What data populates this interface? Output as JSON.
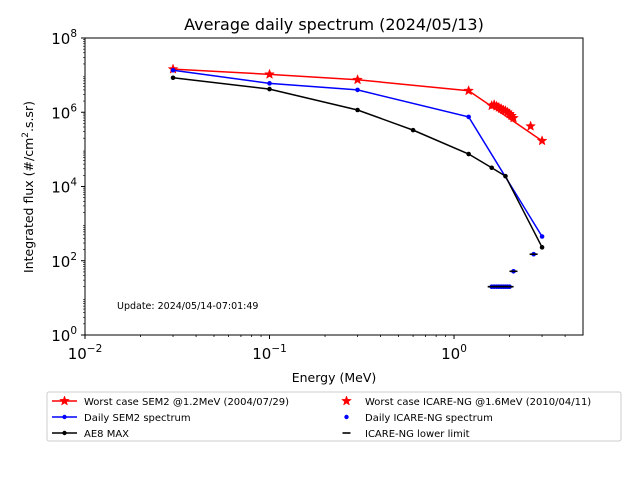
{
  "chart_data": {
    "type": "line",
    "title": "Average daily spectrum (2024/05/13)",
    "xlabel": "Energy (MeV)",
    "ylabel_main": "Integrated flux (#/cm",
    "ylabel_sup": "2",
    "ylabel_tail": ".s.sr)",
    "x_scale": "log",
    "y_scale": "log",
    "xlim": [
      0.01,
      5
    ],
    "ylim": [
      1,
      100000000
    ],
    "grid": false,
    "legend_position": "below plot",
    "annotation": "Update: 2024/05/14-07:01:49",
    "x_ticks": [
      {
        "value": 0.01,
        "base": "10",
        "exp": "−2"
      },
      {
        "value": 0.1,
        "base": "10",
        "exp": "−1"
      },
      {
        "value": 1,
        "base": "10",
        "exp": "0"
      }
    ],
    "y_ticks": [
      {
        "value": 1,
        "base": "10",
        "exp": "0"
      },
      {
        "value": 100,
        "base": "10",
        "exp": "2"
      },
      {
        "value": 10000,
        "base": "10",
        "exp": "4"
      },
      {
        "value": 1000000,
        "base": "10",
        "exp": "6"
      },
      {
        "value": 100000000,
        "base": "10",
        "exp": "8"
      }
    ],
    "series": [
      {
        "name": "Worst case SEM2 @1.2MeV (2004/07/29)",
        "color": "#ff0000",
        "marker": "star",
        "line": true,
        "x": [
          0.03,
          0.1,
          0.3,
          1.2,
          3.0
        ],
        "y": [
          14500000,
          10500000,
          7500000,
          3800000,
          170000
        ]
      },
      {
        "name": "Daily SEM2 spectrum",
        "color": "#0000ff",
        "marker": "dot",
        "line": true,
        "x": [
          0.03,
          0.1,
          0.3,
          1.2,
          3.0
        ],
        "y": [
          13500000,
          6000000,
          4000000,
          750000,
          450
        ]
      },
      {
        "name": "AE8 MAX",
        "color": "#000000",
        "marker": "dot",
        "line": true,
        "x": [
          0.03,
          0.1,
          0.3,
          0.6,
          1.2,
          1.6,
          1.9,
          3.0
        ],
        "y": [
          8500000,
          4200000,
          1150000,
          330000,
          75000,
          32000,
          19000,
          230
        ]
      },
      {
        "name": "Worst case ICARE-NG @1.6MeV (2010/04/11)",
        "color": "#ff0000",
        "marker": "star",
        "line": false,
        "x": [
          1.6,
          1.65,
          1.7,
          1.75,
          1.8,
          1.85,
          1.9,
          1.95,
          2.0,
          2.05,
          2.1,
          2.6
        ],
        "y": [
          1500000,
          1600000,
          1450000,
          1350000,
          1250000,
          1150000,
          1100000,
          1000000,
          900000,
          800000,
          700000,
          420000
        ]
      },
      {
        "name": "Daily ICARE-NG spectrum",
        "color": "#0000ff",
        "marker": "dot",
        "line": false,
        "x": [
          1.6,
          1.65,
          1.7,
          1.75,
          1.8,
          1.85,
          1.9,
          1.95,
          2.0,
          2.1,
          2.7
        ],
        "y": [
          20,
          20,
          20,
          20,
          20,
          20,
          20,
          20,
          20,
          52,
          150
        ]
      },
      {
        "name": "ICARE-NG lower limit",
        "color": "#000000",
        "marker": "hline",
        "line": false,
        "x": [
          1.6,
          1.65,
          1.7,
          1.75,
          1.8,
          1.85,
          1.9,
          1.95,
          2.0,
          2.1,
          2.7
        ],
        "y": [
          20,
          20,
          20,
          20,
          20,
          20,
          20,
          20,
          20,
          52,
          150
        ]
      }
    ]
  }
}
